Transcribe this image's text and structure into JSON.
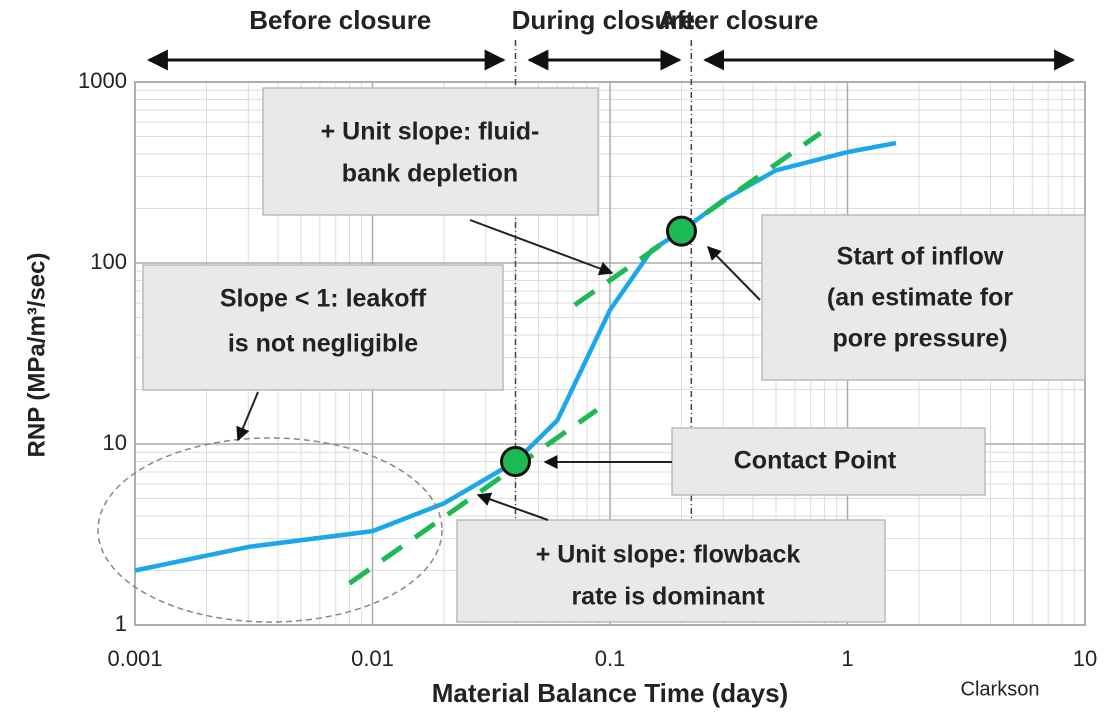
{
  "chart_data": {
    "type": "line",
    "xlabel": "Material Balance Time (days)",
    "ylabel": "RNP (MPa/m³/sec)",
    "credit": "Clarkson",
    "xscale": "log",
    "yscale": "log",
    "xlim": [
      0.001,
      10
    ],
    "ylim": [
      1,
      1000
    ],
    "xticks": [
      0.001,
      0.01,
      0.1,
      1,
      10
    ],
    "yticks": [
      1,
      10,
      100,
      1000
    ],
    "grid": true,
    "series": [
      {
        "color": "#1aa7ec",
        "style": "solid",
        "x": [
          0.001,
          0.003,
          0.01,
          0.02,
          0.04,
          0.06,
          0.1,
          0.15,
          0.2,
          0.3,
          0.5,
          1,
          1.6
        ],
        "values": [
          2.0,
          2.7,
          3.3,
          4.7,
          8,
          13.5,
          55,
          118,
          150,
          223,
          325,
          410,
          460
        ]
      },
      {
        "color": "#1db954",
        "style": "dashed",
        "x": [
          0.008,
          0.088
        ],
        "values": [
          1.7,
          15.4
        ]
      },
      {
        "color": "#1db954",
        "style": "dashed",
        "x": [
          0.071,
          0.77
        ],
        "values": [
          58.6,
          522
        ]
      }
    ],
    "points": {
      "color": "#1db954",
      "x": [
        0.04,
        0.2
      ],
      "values": [
        8,
        150
      ]
    },
    "vlines": [
      0.04,
      0.22
    ],
    "phases": [
      {
        "label": "Before closure",
        "color": "#ff2a2a",
        "x": [
          0.001,
          0.04
        ]
      },
      {
        "label": "During closure",
        "color": "#222222",
        "x": [
          0.04,
          0.22
        ]
      },
      {
        "label": "After closure",
        "color": "#1db954",
        "x": [
          0.22,
          10
        ]
      }
    ],
    "annotations": [
      {
        "lines": [
          "+ Unit slope: fluid-",
          "bank depletion"
        ],
        "color": "#1db954"
      },
      {
        "lines": [
          "Slope < 1: leakoff",
          "is not negligible"
        ],
        "color": "#222222"
      },
      {
        "lines": [
          "Start of inflow",
          "(an estimate for",
          "pore pressure)"
        ],
        "color": "#222222"
      },
      {
        "lines": [
          "Contact Point"
        ],
        "color": "#222222"
      },
      {
        "lines": [
          "+ Unit slope: flowback",
          "rate is dominant"
        ],
        "color": "#1db954"
      }
    ]
  }
}
